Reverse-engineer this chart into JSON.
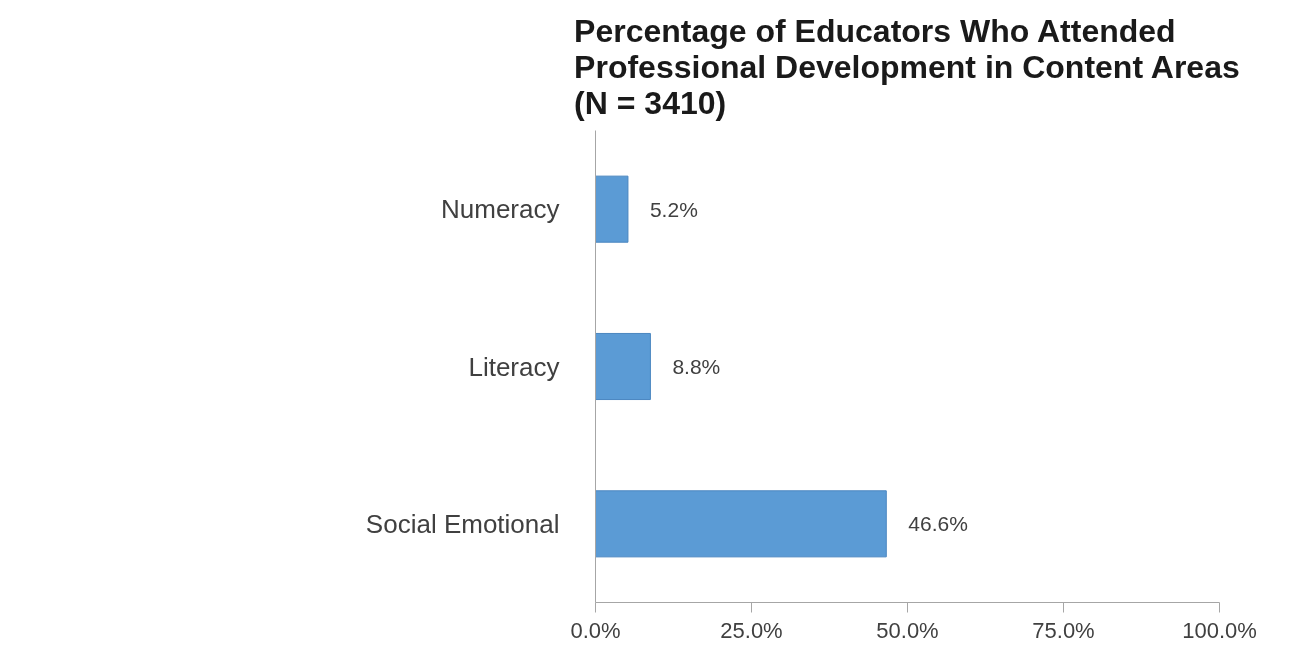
{
  "chart_data": {
    "type": "bar",
    "orientation": "horizontal",
    "title": "Percentage of Educators Who Attended\nProfessional Development in Content Areas\n(N = 3410)",
    "categories": [
      "Numeracy",
      "Literacy",
      "Social Emotional"
    ],
    "values": [
      5.2,
      8.8,
      46.6
    ],
    "value_labels": [
      "5.2%",
      "8.8%",
      "46.6%"
    ],
    "color": "#5b9bd5",
    "xlim": [
      0,
      100
    ],
    "xticks": [
      {
        "value": 0,
        "label": "0.0%"
      },
      {
        "value": 25,
        "label": "25.0%"
      },
      {
        "value": 50,
        "label": "50.0%"
      },
      {
        "value": 75,
        "label": "75.0%"
      },
      {
        "value": 100,
        "label": "100.0%"
      }
    ],
    "grid": false
  }
}
